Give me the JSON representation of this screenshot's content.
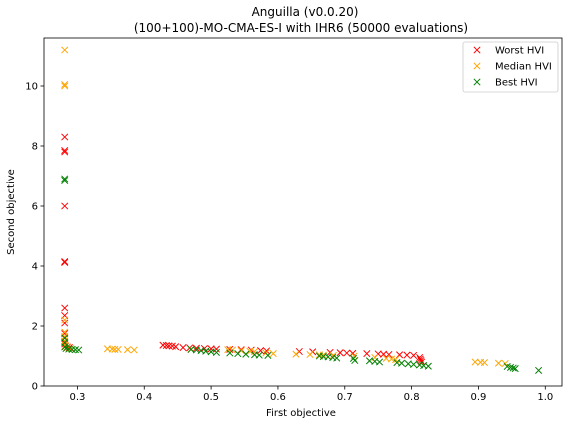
{
  "chart_data": {
    "type": "scatter",
    "title": "Anguilla (v0.0.20)",
    "subtitle": "(100+100)-MO-CMA-ES-I with IHR6 (50000 evaluations)",
    "xlabel": "First objective",
    "ylabel": "Second objective",
    "xlim": [
      0.25,
      1.025
    ],
    "ylim": [
      0,
      11.6
    ],
    "xticks": [
      0.3,
      0.4,
      0.5,
      0.6,
      0.7,
      0.8,
      0.9,
      1.0
    ],
    "xtick_labels": [
      "0.3",
      "0.4",
      "0.5",
      "0.6",
      "0.7",
      "0.8",
      "0.9",
      "1.0"
    ],
    "yticks": [
      0,
      2,
      4,
      6,
      8,
      10
    ],
    "ytick_labels": [
      "0",
      "2",
      "4",
      "6",
      "8",
      "10"
    ],
    "grid": false,
    "legend_position": "top-right",
    "marker": "x",
    "series": [
      {
        "name": "Worst HVI",
        "color": "#ff0000",
        "points": [
          [
            0.281,
            8.3
          ],
          [
            0.281,
            7.85
          ],
          [
            0.281,
            7.8
          ],
          [
            0.281,
            6.0
          ],
          [
            0.281,
            4.15
          ],
          [
            0.281,
            4.12
          ],
          [
            0.281,
            2.6
          ],
          [
            0.281,
            2.35
          ],
          [
            0.281,
            2.1
          ],
          [
            0.281,
            1.75
          ],
          [
            0.281,
            1.6
          ],
          [
            0.281,
            1.5
          ],
          [
            0.281,
            1.4
          ],
          [
            0.282,
            1.32
          ],
          [
            0.285,
            1.3
          ],
          [
            0.288,
            1.28
          ],
          [
            0.428,
            1.36
          ],
          [
            0.433,
            1.35
          ],
          [
            0.437,
            1.34
          ],
          [
            0.442,
            1.33
          ],
          [
            0.447,
            1.31
          ],
          [
            0.458,
            1.28
          ],
          [
            0.468,
            1.27
          ],
          [
            0.478,
            1.26
          ],
          [
            0.49,
            1.25
          ],
          [
            0.5,
            1.24
          ],
          [
            0.508,
            1.23
          ],
          [
            0.528,
            1.22
          ],
          [
            0.545,
            1.21
          ],
          [
            0.56,
            1.2
          ],
          [
            0.574,
            1.18
          ],
          [
            0.583,
            1.17
          ],
          [
            0.632,
            1.15
          ],
          [
            0.652,
            1.14
          ],
          [
            0.678,
            1.12
          ],
          [
            0.693,
            1.11
          ],
          [
            0.703,
            1.1
          ],
          [
            0.712,
            1.09
          ],
          [
            0.733,
            1.08
          ],
          [
            0.75,
            1.07
          ],
          [
            0.758,
            1.06
          ],
          [
            0.766,
            1.05
          ],
          [
            0.782,
            1.04
          ],
          [
            0.793,
            1.03
          ],
          [
            0.803,
            1.02
          ],
          [
            0.812,
            0.95
          ],
          [
            0.813,
            0.9
          ],
          [
            0.814,
            0.85
          ],
          [
            0.815,
            0.8
          ]
        ]
      },
      {
        "name": "Median HVI",
        "color": "#ffa500",
        "points": [
          [
            0.281,
            11.2
          ],
          [
            0.281,
            10.05
          ],
          [
            0.281,
            10.0
          ],
          [
            0.281,
            2.2
          ],
          [
            0.281,
            1.8
          ],
          [
            0.281,
            1.65
          ],
          [
            0.281,
            1.5
          ],
          [
            0.282,
            1.35
          ],
          [
            0.285,
            1.28
          ],
          [
            0.29,
            1.25
          ],
          [
            0.345,
            1.24
          ],
          [
            0.352,
            1.23
          ],
          [
            0.356,
            1.22
          ],
          [
            0.361,
            1.22
          ],
          [
            0.375,
            1.21
          ],
          [
            0.385,
            1.2
          ],
          [
            0.47,
            1.22
          ],
          [
            0.525,
            1.21
          ],
          [
            0.532,
            1.2
          ],
          [
            0.545,
            1.18
          ],
          [
            0.558,
            1.16
          ],
          [
            0.565,
            1.15
          ],
          [
            0.582,
            1.1
          ],
          [
            0.593,
            1.08
          ],
          [
            0.627,
            1.06
          ],
          [
            0.648,
            1.05
          ],
          [
            0.662,
            1.04
          ],
          [
            0.668,
            1.03
          ],
          [
            0.683,
            1.02
          ],
          [
            0.714,
            1.0
          ],
          [
            0.745,
            0.95
          ],
          [
            0.762,
            0.92
          ],
          [
            0.77,
            0.9
          ],
          [
            0.776,
            0.88
          ],
          [
            0.895,
            0.8
          ],
          [
            0.903,
            0.79
          ],
          [
            0.909,
            0.78
          ],
          [
            0.93,
            0.76
          ],
          [
            0.94,
            0.75
          ]
        ]
      },
      {
        "name": "Best HVI",
        "color": "#008000",
        "points": [
          [
            0.281,
            6.9
          ],
          [
            0.281,
            6.85
          ],
          [
            0.281,
            1.6
          ],
          [
            0.281,
            1.45
          ],
          [
            0.281,
            1.3
          ],
          [
            0.283,
            1.25
          ],
          [
            0.287,
            1.23
          ],
          [
            0.292,
            1.22
          ],
          [
            0.297,
            1.21
          ],
          [
            0.302,
            1.2
          ],
          [
            0.47,
            1.22
          ],
          [
            0.478,
            1.2
          ],
          [
            0.485,
            1.18
          ],
          [
            0.492,
            1.16
          ],
          [
            0.5,
            1.14
          ],
          [
            0.508,
            1.12
          ],
          [
            0.528,
            1.1
          ],
          [
            0.54,
            1.08
          ],
          [
            0.552,
            1.06
          ],
          [
            0.565,
            1.04
          ],
          [
            0.572,
            1.03
          ],
          [
            0.585,
            1.02
          ],
          [
            0.662,
            1.0
          ],
          [
            0.668,
            0.98
          ],
          [
            0.675,
            0.97
          ],
          [
            0.682,
            0.95
          ],
          [
            0.688,
            0.93
          ],
          [
            0.713,
            0.92
          ],
          [
            0.715,
            0.85
          ],
          [
            0.737,
            0.84
          ],
          [
            0.745,
            0.82
          ],
          [
            0.752,
            0.8
          ],
          [
            0.778,
            0.78
          ],
          [
            0.785,
            0.76
          ],
          [
            0.795,
            0.74
          ],
          [
            0.803,
            0.72
          ],
          [
            0.812,
            0.7
          ],
          [
            0.818,
            0.68
          ],
          [
            0.825,
            0.66
          ],
          [
            0.943,
            0.65
          ],
          [
            0.948,
            0.62
          ],
          [
            0.952,
            0.6
          ],
          [
            0.955,
            0.58
          ],
          [
            0.99,
            0.52
          ]
        ]
      }
    ]
  }
}
